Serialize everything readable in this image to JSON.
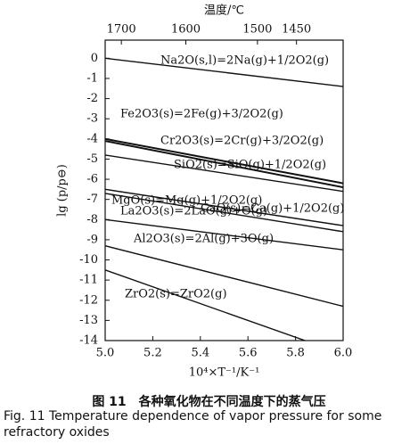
{
  "chart_data": {
    "type": "line",
    "x_label": "10⁴×T⁻¹/K⁻¹",
    "y_label": "lg (p/p⊖)",
    "x2_label": "温度/℃",
    "xlim": [
      5.0,
      6.0
    ],
    "ylim": [
      -14,
      0.9
    ],
    "xticks": [
      {
        "value": 5,
        "label": "5.0"
      },
      5.2,
      5.4,
      5.6,
      5.8,
      {
        "value": 6,
        "label": "6.0"
      }
    ],
    "yticks": [
      0,
      -1,
      -2,
      -3,
      -4,
      -5,
      -6,
      -7,
      -8,
      -9,
      -10,
      -11,
      -12,
      -13,
      -14
    ],
    "x2ticks": [
      {
        "value": 5.068,
        "label": "1700"
      },
      {
        "value": 5.339,
        "label": "1600"
      },
      {
        "value": 5.64,
        "label": "1500"
      },
      {
        "value": 5.804,
        "label": "1450"
      }
    ],
    "color": "#111",
    "series": [
      {
        "name": "Na2O(s,l)=2Na(g)+1/2O2(g)",
        "x": [
          5.0,
          6.0
        ],
        "values": [
          0,
          -1.4
        ]
      },
      {
        "name": "Fe2O3(s)=2Fe(g)+3/2O2(g)",
        "x": [
          5.0,
          6.0
        ],
        "values": [
          -4.0,
          -6.2
        ]
      },
      {
        "name": "Cr2O3(s)=2Cr(g)+3/2O2(g)",
        "x": [
          5.0,
          6.0
        ],
        "values": [
          -4.1,
          -6.4
        ]
      },
      {
        "name": "SiO2(s)=SiO(g)+1/2O2(g)",
        "x": [
          5.0,
          6.0
        ],
        "values": [
          -4.8,
          -6.6
        ]
      },
      {
        "name": "MgO(s)=Mg(g)+1/2O2(g)",
        "x": [
          5.0,
          6.0
        ],
        "values": [
          -6.5,
          -8.3
        ]
      },
      {
        "name": "CaO(s)=Ca(g)+1/2O2(g)",
        "x": [
          5.0,
          6.0
        ],
        "values": [
          -6.7,
          -8.6
        ]
      },
      {
        "name": "La2O3(s)=2LaO(g)+O(g)",
        "x": [
          5.0,
          6.0
        ],
        "values": [
          -8.0,
          -9.5
        ]
      },
      {
        "name": "Al2O3(s)=2Al(g)+3O(g)",
        "x": [
          5.0,
          6.0
        ],
        "values": [
          -9.3,
          -12.3
        ]
      },
      {
        "name": "ZrO2(s)=ZrO2(g)",
        "x": [
          5.0,
          5.84
        ],
        "values": [
          -10.5,
          -14
        ]
      }
    ]
  },
  "caption": {
    "cn": "图 11　各种氧化物在不同温度下的蒸气压",
    "en": "Fig. 11 Temperature dependence of vapor pressure for some refractory oxides"
  }
}
